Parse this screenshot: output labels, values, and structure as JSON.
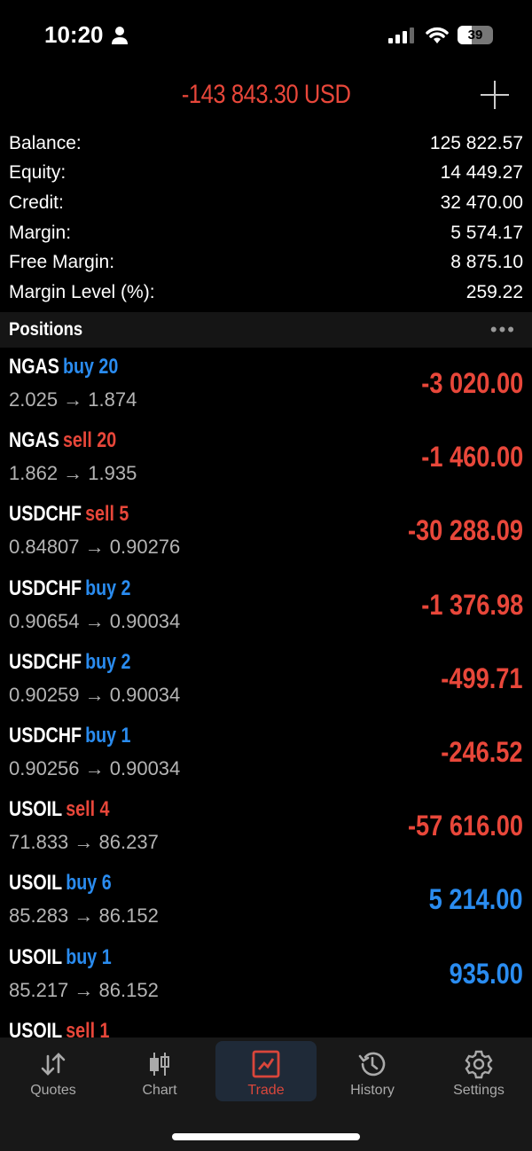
{
  "status_bar": {
    "time": "10:20",
    "battery": "39",
    "battery_level": 0.39
  },
  "header": {
    "total": "-143 843.30 USD"
  },
  "summary": [
    {
      "label": "Balance:",
      "value": "125 822.57"
    },
    {
      "label": "Equity:",
      "value": "14 449.27"
    },
    {
      "label": "Credit:",
      "value": "32 470.00"
    },
    {
      "label": "Margin:",
      "value": "5 574.17"
    },
    {
      "label": "Free Margin:",
      "value": "8 875.10"
    },
    {
      "label": "Margin Level (%):",
      "value": "259.22"
    }
  ],
  "positions_title": "Positions",
  "positions": [
    {
      "symbol": "NGAS",
      "dir": "buy 20",
      "prices": "2.025 → 1.874",
      "profit": "-3 020.00",
      "side": "buy",
      "profit_color": "#e8473a"
    },
    {
      "symbol": "NGAS",
      "dir": "sell 20",
      "prices": "1.862 → 1.935",
      "profit": "-1 460.00",
      "side": "sell",
      "profit_color": "#e8473a"
    },
    {
      "symbol": "USDCHF",
      "dir": "sell 5",
      "prices": "0.84807 → 0.90276",
      "profit": "-30 288.09",
      "side": "sell",
      "profit_color": "#e8473a"
    },
    {
      "symbol": "USDCHF",
      "dir": "buy 2",
      "prices": "0.90654 → 0.90034",
      "profit": "-1 376.98",
      "side": "buy",
      "profit_color": "#e8473a"
    },
    {
      "symbol": "USDCHF",
      "dir": "buy 2",
      "prices": "0.90259 → 0.90034",
      "profit": "-499.71",
      "side": "buy",
      "profit_color": "#e8473a"
    },
    {
      "symbol": "USDCHF",
      "dir": "buy 1",
      "prices": "0.90256 → 0.90034",
      "profit": "-246.52",
      "side": "buy",
      "profit_color": "#e8473a"
    },
    {
      "symbol": "USOIL",
      "dir": "sell 4",
      "prices": "71.833 → 86.237",
      "profit": "-57 616.00",
      "side": "sell",
      "profit_color": "#e8473a"
    },
    {
      "symbol": "USOIL",
      "dir": "buy 6",
      "prices": "85.283 → 86.152",
      "profit": "5 214.00",
      "side": "buy",
      "profit_color": "#2a8cf0"
    },
    {
      "symbol": "USOIL",
      "dir": "buy 1",
      "prices": "85.217 → 86.152",
      "profit": "935.00",
      "side": "buy",
      "profit_color": "#2a8cf0"
    },
    {
      "symbol": "USOIL",
      "dir": "sell 1",
      "side": "sell"
    }
  ],
  "colors": {
    "buy": "#2a8cf0",
    "sell": "#e8473a"
  },
  "tabs": [
    {
      "label": "Quotes",
      "icon": "arrows-icon"
    },
    {
      "label": "Chart",
      "icon": "candles-icon"
    },
    {
      "label": "Trade",
      "icon": "trade-chart-icon",
      "active": true
    },
    {
      "label": "History",
      "icon": "history-icon"
    },
    {
      "label": "Settings",
      "icon": "gear-icon"
    }
  ]
}
